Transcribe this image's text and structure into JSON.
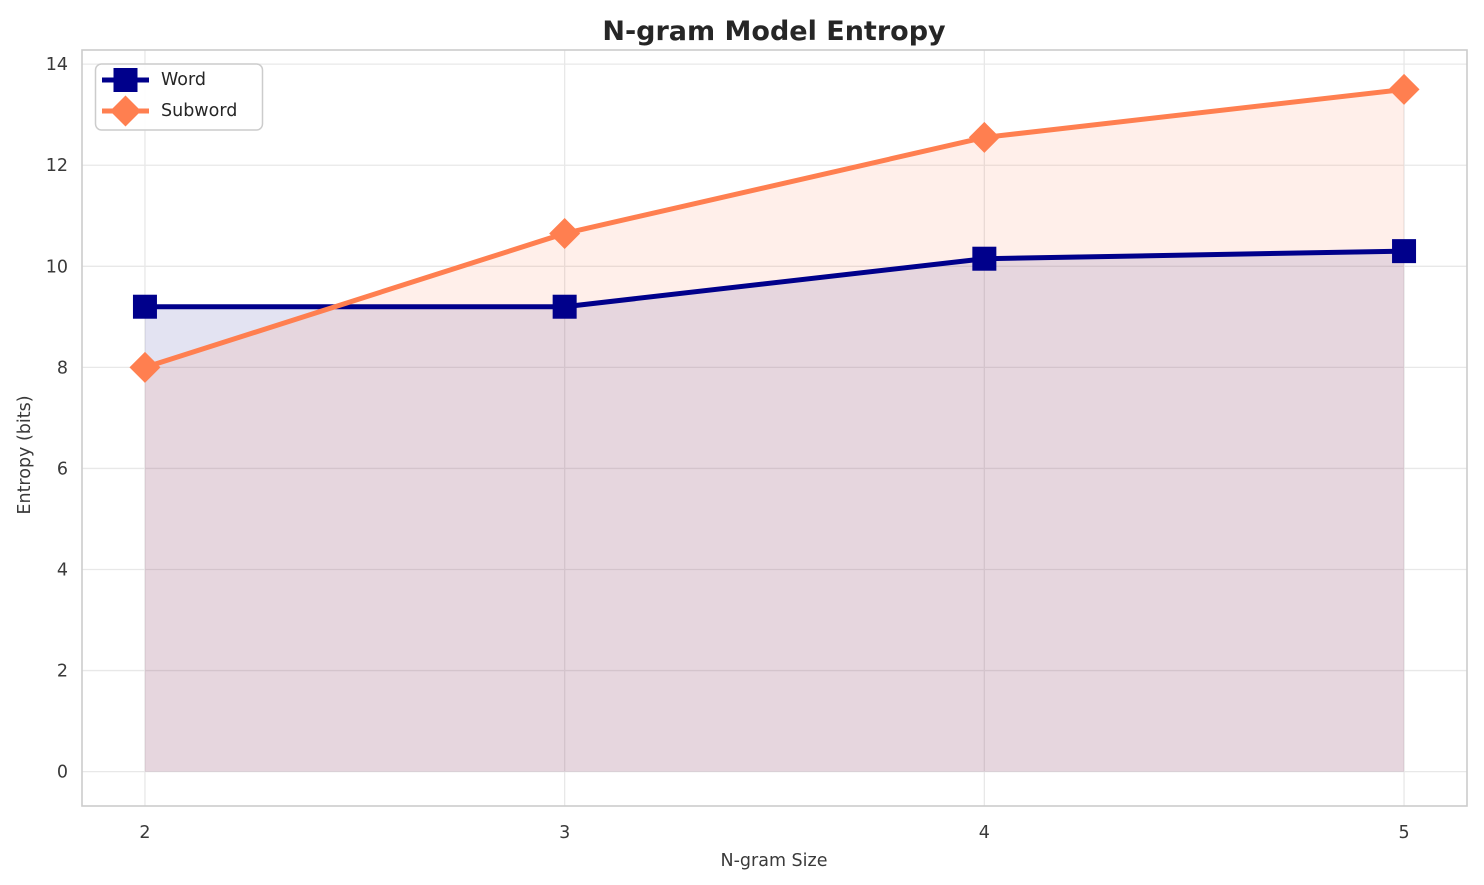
{
  "chart_data": {
    "type": "line",
    "title": "N-gram Model Entropy",
    "xlabel": "N-gram Size",
    "ylabel": "Entropy (bits)",
    "x": [
      2,
      3,
      4,
      5
    ],
    "series": [
      {
        "name": "Word",
        "values": [
          9.2,
          9.2,
          10.15,
          10.3
        ],
        "color": "#00008B",
        "marker": "square"
      },
      {
        "name": "Subword",
        "values": [
          8.0,
          10.65,
          12.55,
          13.5
        ],
        "color": "#FF7F50",
        "marker": "diamond"
      }
    ],
    "x_ticks": [
      2,
      3,
      4,
      5
    ],
    "y_ticks": [
      0,
      2,
      4,
      6,
      8,
      10,
      12,
      14
    ],
    "xlim": [
      1.85,
      5.15
    ],
    "ylim": [
      -0.68,
      14.28
    ],
    "grid": true,
    "legend_position": "upper left",
    "fill_to_zero": true,
    "fill_opacity": {
      "Word": 0.11,
      "Subword": 0.12
    },
    "line_width": 5,
    "grid_color": "#e8e8e8",
    "spine_color": "#cccccc",
    "tick_color": "#3a3a3a",
    "title_color": "#262626",
    "background": "#ffffff"
  }
}
